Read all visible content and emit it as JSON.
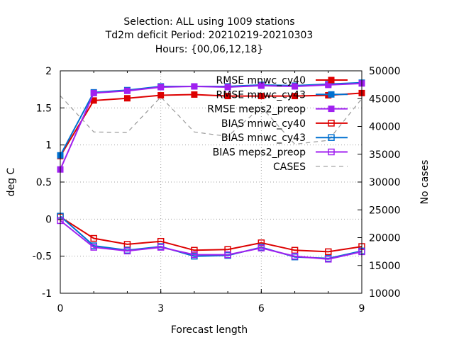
{
  "chart_data": {
    "type": "line",
    "title_lines": [
      "Selection: ALL using  1009 stations",
      "Td2m deficit   Period: 20210219-20210303",
      "Hours: {00,06,12,18}"
    ],
    "xlabel": "Forecast length",
    "ylabel": "deg C",
    "y2label": "No cases",
    "xlim": [
      0,
      9
    ],
    "ylim": [
      -1,
      2
    ],
    "y2lim": [
      10000,
      50000
    ],
    "x_ticks": [
      "0",
      "3",
      "6",
      "9"
    ],
    "y_ticks": [
      "-1",
      "-0.5",
      "0",
      "0.5",
      "1",
      "1.5",
      "2"
    ],
    "y2_ticks": [
      "10000",
      "15000",
      "20000",
      "25000",
      "30000",
      "35000",
      "40000",
      "45000",
      "50000"
    ],
    "grid": true,
    "legend_position": "top-right",
    "x": [
      0,
      1,
      2,
      3,
      4,
      5,
      6,
      7,
      8,
      9
    ],
    "series": [
      {
        "name": "RMSE mnwc_cy40",
        "axis": "y",
        "color": "#dd0000",
        "marker": "filled-square",
        "dashed": false,
        "values": [
          0.85,
          1.6,
          1.63,
          1.67,
          1.68,
          1.66,
          1.66,
          1.66,
          1.67,
          1.7
        ]
      },
      {
        "name": "RMSE mnwc_cy43",
        "axis": "y",
        "color": "#0070d0",
        "marker": "filled-square",
        "dashed": false,
        "values": [
          0.86,
          1.71,
          1.74,
          1.79,
          1.79,
          1.79,
          1.81,
          1.8,
          1.82,
          1.84
        ]
      },
      {
        "name": "RMSE meps2_preop",
        "axis": "y",
        "color": "#a020f0",
        "marker": "filled-square",
        "dashed": false,
        "values": [
          0.67,
          1.7,
          1.73,
          1.78,
          1.79,
          1.78,
          1.8,
          1.79,
          1.81,
          1.83
        ]
      },
      {
        "name": "BIAS mnwc_cy40",
        "axis": "y",
        "color": "#dd0000",
        "marker": "open-square",
        "dashed": false,
        "values": [
          0.03,
          -0.26,
          -0.34,
          -0.3,
          -0.42,
          -0.41,
          -0.32,
          -0.42,
          -0.44,
          -0.37
        ]
      },
      {
        "name": "BIAS mnwc_cy43",
        "axis": "y",
        "color": "#0070d0",
        "marker": "open-square",
        "dashed": false,
        "values": [
          0.04,
          -0.36,
          -0.42,
          -0.37,
          -0.5,
          -0.49,
          -0.38,
          -0.51,
          -0.53,
          -0.43
        ]
      },
      {
        "name": "BIAS meps2_preop",
        "axis": "y",
        "color": "#a020f0",
        "marker": "open-square",
        "dashed": false,
        "values": [
          -0.02,
          -0.38,
          -0.43,
          -0.38,
          -0.48,
          -0.48,
          -0.39,
          -0.5,
          -0.54,
          -0.44
        ]
      },
      {
        "name": "CASES",
        "axis": "y2",
        "color": "#999999",
        "marker": "none",
        "dashed": true,
        "values": [
          45500,
          39000,
          38900,
          45300,
          39000,
          38200,
          43500,
          36800,
          37500,
          45000
        ]
      }
    ]
  }
}
